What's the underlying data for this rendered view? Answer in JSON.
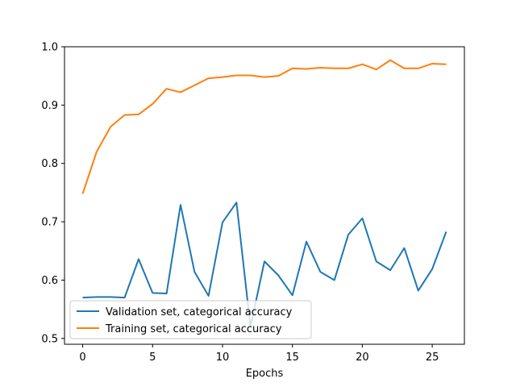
{
  "chart_data": {
    "type": "line",
    "title": "",
    "xlabel": "Epochs",
    "ylabel": "",
    "xlim": [
      -1.3,
      27.3
    ],
    "ylim": [
      0.49,
      1.0
    ],
    "xticks": [
      0,
      5,
      10,
      15,
      20,
      25
    ],
    "yticks": [
      0.5,
      0.6,
      0.7,
      0.8,
      0.9,
      1.0
    ],
    "xtick_labels": [
      "0",
      "5",
      "10",
      "15",
      "20",
      "25"
    ],
    "ytick_labels": [
      "0.5",
      "0.6",
      "0.7",
      "0.8",
      "0.9",
      "1.0"
    ],
    "grid": false,
    "legend_position": "lower-left",
    "x": [
      0,
      1,
      2,
      3,
      4,
      5,
      6,
      7,
      8,
      9,
      10,
      11,
      12,
      13,
      14,
      15,
      16,
      17,
      18,
      19,
      20,
      21,
      22,
      23,
      24,
      25,
      26
    ],
    "series": [
      {
        "name": "Validation set, categorical accuracy",
        "color": "#1f77b4",
        "values": [
          0.57,
          0.571,
          0.571,
          0.57,
          0.636,
          0.578,
          0.577,
          0.729,
          0.614,
          0.573,
          0.699,
          0.733,
          0.52,
          0.632,
          0.608,
          0.574,
          0.666,
          0.614,
          0.6,
          0.678,
          0.706,
          0.632,
          0.617,
          0.655,
          0.582,
          0.619,
          0.683
        ]
      },
      {
        "name": "Training set, categorical accuracy",
        "color": "#ff7f0e",
        "values": [
          0.748,
          0.82,
          0.863,
          0.883,
          0.884,
          0.902,
          0.928,
          0.922,
          0.934,
          0.946,
          0.948,
          0.951,
          0.951,
          0.948,
          0.95,
          0.963,
          0.962,
          0.964,
          0.963,
          0.963,
          0.97,
          0.961,
          0.977,
          0.963,
          0.963,
          0.971,
          0.97
        ]
      }
    ]
  }
}
